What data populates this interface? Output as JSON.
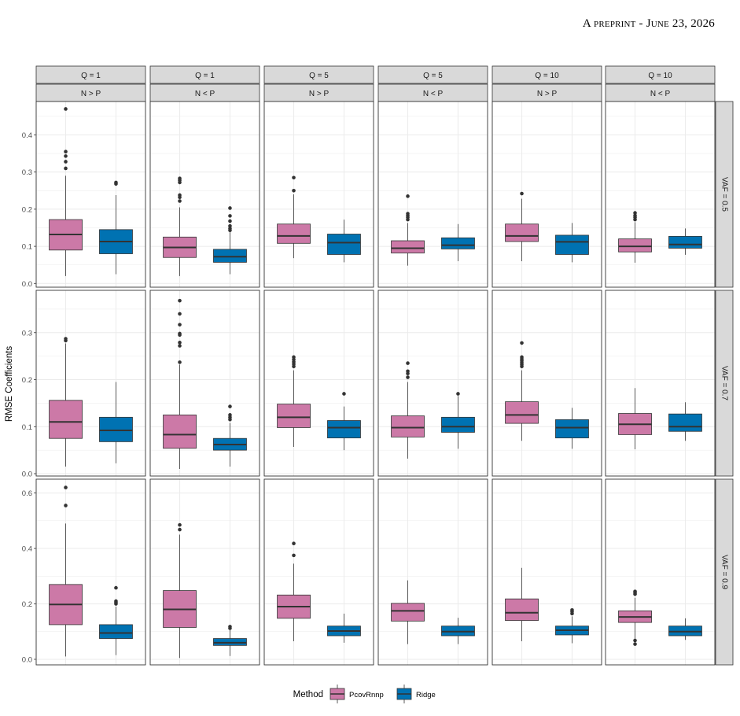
{
  "page_header": "A preprint - June 23, 2026",
  "chart_data": {
    "type": "boxplot",
    "ylabel": "RMSE Coefficients",
    "columns": [
      {
        "q": "Q = 1",
        "np": "N > P"
      },
      {
        "q": "Q = 1",
        "np": "N < P"
      },
      {
        "q": "Q = 5",
        "np": "N > P"
      },
      {
        "q": "Q = 5",
        "np": "N < P"
      },
      {
        "q": "Q = 10",
        "np": "N > P"
      },
      {
        "q": "Q = 10",
        "np": "N < P"
      }
    ],
    "rows": [
      {
        "label": "VAF = 0.5",
        "ylim": [
          -0.01,
          0.49
        ],
        "ticks": [
          0.0,
          0.1,
          0.2,
          0.3,
          0.4
        ],
        "tick_labels": [
          "0.0",
          "0.1",
          "0.2",
          "0.3",
          "0.4"
        ]
      },
      {
        "label": "VAF = 0.7",
        "ylim": [
          -0.005,
          0.39
        ],
        "ticks": [
          0.0,
          0.1,
          0.2,
          0.3
        ],
        "tick_labels": [
          "0.0",
          "0.1",
          "0.2",
          "0.3"
        ]
      },
      {
        "label": "VAF = 0.9",
        "ylim": [
          -0.02,
          0.65
        ],
        "ticks": [
          0.0,
          0.2,
          0.4,
          0.6
        ],
        "tick_labels": [
          "0.0",
          "0.2",
          "0.4",
          "0.6"
        ]
      }
    ],
    "legend": {
      "title": "Method",
      "position": "bottom",
      "items": [
        {
          "name": "PcovRnnp",
          "color": "#cc79a7"
        },
        {
          "name": "Ridge",
          "color": "#0072b2"
        }
      ]
    },
    "colors": {
      "PcovRnnp": "#cc79a7",
      "Ridge": "#0072b2",
      "strip": "#d9d9d9",
      "grid": "#ebebeb"
    },
    "panels": [
      [
        [
          {
            "min": 0.02,
            "q1": 0.09,
            "med": 0.132,
            "q3": 0.172,
            "max": 0.29,
            "out": [
              0.31,
              0.328,
              0.343,
              0.355,
              0.47
            ]
          },
          {
            "min": 0.025,
            "q1": 0.08,
            "med": 0.113,
            "q3": 0.145,
            "max": 0.238,
            "out": [
              0.268,
              0.272
            ]
          }
        ],
        [
          {
            "min": 0.02,
            "q1": 0.07,
            "med": 0.097,
            "q3": 0.125,
            "max": 0.205,
            "out": [
              0.222,
              0.232,
              0.238,
              0.272,
              0.278,
              0.283
            ]
          },
          {
            "min": 0.025,
            "q1": 0.057,
            "med": 0.072,
            "q3": 0.092,
            "max": 0.138,
            "out": [
              0.143,
              0.148,
              0.155,
              0.168,
              0.182,
              0.203
            ]
          }
        ],
        [
          {
            "min": 0.068,
            "q1": 0.108,
            "med": 0.128,
            "q3": 0.16,
            "max": 0.24,
            "out": [
              0.25,
              0.285
            ]
          },
          {
            "min": 0.057,
            "q1": 0.078,
            "med": 0.11,
            "q3": 0.133,
            "max": 0.172,
            "out": []
          }
        ],
        [
          {
            "min": 0.048,
            "q1": 0.082,
            "med": 0.095,
            "q3": 0.115,
            "max": 0.163,
            "out": [
              0.172,
              0.178,
              0.183,
              0.188,
              0.235
            ]
          },
          {
            "min": 0.06,
            "q1": 0.093,
            "med": 0.103,
            "q3": 0.123,
            "max": 0.16,
            "out": []
          }
        ],
        [
          {
            "min": 0.06,
            "q1": 0.113,
            "med": 0.128,
            "q3": 0.16,
            "max": 0.228,
            "out": [
              0.242
            ]
          },
          {
            "min": 0.057,
            "q1": 0.078,
            "med": 0.112,
            "q3": 0.13,
            "max": 0.163,
            "out": []
          }
        ],
        [
          {
            "min": 0.056,
            "q1": 0.085,
            "med": 0.1,
            "q3": 0.12,
            "max": 0.165,
            "out": [
              0.172,
              0.178,
              0.183,
              0.19
            ]
          },
          {
            "min": 0.077,
            "q1": 0.095,
            "med": 0.105,
            "q3": 0.127,
            "max": 0.148,
            "out": []
          }
        ]
      ],
      [
        [
          {
            "min": 0.015,
            "q1": 0.075,
            "med": 0.11,
            "q3": 0.156,
            "max": 0.277,
            "out": [
              0.283,
              0.287
            ]
          },
          {
            "min": 0.022,
            "q1": 0.068,
            "med": 0.092,
            "q3": 0.12,
            "max": 0.195,
            "out": []
          }
        ],
        [
          {
            "min": 0.01,
            "q1": 0.054,
            "med": 0.083,
            "q3": 0.125,
            "max": 0.232,
            "out": [
              0.237,
              0.272,
              0.279,
              0.295,
              0.298,
              0.317,
              0.34,
              0.368
            ]
          },
          {
            "min": 0.015,
            "q1": 0.05,
            "med": 0.062,
            "q3": 0.075,
            "max": 0.108,
            "out": [
              0.115,
              0.12,
              0.125,
              0.143
            ]
          }
        ],
        [
          {
            "min": 0.057,
            "q1": 0.098,
            "med": 0.12,
            "q3": 0.148,
            "max": 0.22,
            "out": [
              0.228,
              0.233,
              0.238,
              0.243,
              0.248
            ]
          },
          {
            "min": 0.05,
            "q1": 0.076,
            "med": 0.098,
            "q3": 0.113,
            "max": 0.143,
            "out": [
              0.17
            ]
          }
        ],
        [
          {
            "min": 0.032,
            "q1": 0.078,
            "med": 0.098,
            "q3": 0.123,
            "max": 0.195,
            "out": [
              0.205,
              0.213,
              0.218,
              0.235
            ]
          },
          {
            "min": 0.053,
            "q1": 0.088,
            "med": 0.1,
            "q3": 0.12,
            "max": 0.165,
            "out": [
              0.17
            ]
          }
        ],
        [
          {
            "min": 0.07,
            "q1": 0.107,
            "med": 0.125,
            "q3": 0.153,
            "max": 0.22,
            "out": [
              0.228,
              0.232,
              0.236,
              0.24,
              0.244,
              0.248,
              0.278
            ]
          },
          {
            "min": 0.053,
            "q1": 0.076,
            "med": 0.098,
            "q3": 0.115,
            "max": 0.14,
            "out": []
          }
        ],
        [
          {
            "min": 0.052,
            "q1": 0.083,
            "med": 0.105,
            "q3": 0.128,
            "max": 0.182,
            "out": []
          },
          {
            "min": 0.07,
            "q1": 0.09,
            "med": 0.1,
            "q3": 0.127,
            "max": 0.152,
            "out": []
          }
        ]
      ],
      [
        [
          {
            "min": 0.01,
            "q1": 0.125,
            "med": 0.198,
            "q3": 0.27,
            "max": 0.49,
            "out": [
              0.555,
              0.62
            ]
          },
          {
            "min": 0.015,
            "q1": 0.075,
            "med": 0.095,
            "q3": 0.125,
            "max": 0.19,
            "out": [
              0.2,
              0.205,
              0.21,
              0.258
            ]
          }
        ],
        [
          {
            "min": 0.005,
            "q1": 0.115,
            "med": 0.18,
            "q3": 0.248,
            "max": 0.45,
            "out": [
              0.468,
              0.485
            ]
          },
          {
            "min": 0.012,
            "q1": 0.05,
            "med": 0.06,
            "q3": 0.075,
            "max": 0.105,
            "out": [
              0.112,
              0.118
            ]
          }
        ],
        [
          {
            "min": 0.065,
            "q1": 0.148,
            "med": 0.19,
            "q3": 0.232,
            "max": 0.345,
            "out": [
              0.375,
              0.418
            ]
          },
          {
            "min": 0.06,
            "q1": 0.085,
            "med": 0.102,
            "q3": 0.12,
            "max": 0.165,
            "out": []
          }
        ],
        [
          {
            "min": 0.055,
            "q1": 0.138,
            "med": 0.175,
            "q3": 0.202,
            "max": 0.285,
            "out": []
          },
          {
            "min": 0.055,
            "q1": 0.085,
            "med": 0.1,
            "q3": 0.12,
            "max": 0.15,
            "out": []
          }
        ],
        [
          {
            "min": 0.065,
            "q1": 0.14,
            "med": 0.168,
            "q3": 0.218,
            "max": 0.33,
            "out": []
          },
          {
            "min": 0.058,
            "q1": 0.088,
            "med": 0.105,
            "q3": 0.12,
            "max": 0.155,
            "out": [
              0.165,
              0.172,
              0.178
            ]
          }
        ],
        [
          {
            "min": 0.07,
            "q1": 0.133,
            "med": 0.153,
            "q3": 0.175,
            "max": 0.222,
            "out": [
              0.055,
              0.068,
              0.235,
              0.24,
              0.245
            ]
          },
          {
            "min": 0.07,
            "q1": 0.085,
            "med": 0.1,
            "q3": 0.12,
            "max": 0.148,
            "out": []
          }
        ]
      ]
    ]
  }
}
